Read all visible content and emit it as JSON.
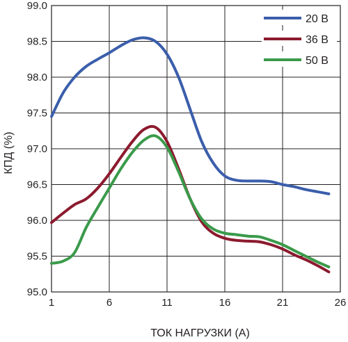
{
  "chart_data": {
    "type": "line",
    "title": "",
    "xlabel": "ТОК НАГРУЗКИ (А)",
    "ylabel": "КПД (%)",
    "xlim": [
      1,
      26
    ],
    "ylim": [
      95.0,
      99.0
    ],
    "xticks": [
      1,
      6,
      11,
      16,
      21,
      26
    ],
    "xtick_labels": [
      "1",
      "6",
      "11",
      "16",
      "21",
      "26"
    ],
    "yticks": [
      95.0,
      95.5,
      96.0,
      96.5,
      97.0,
      97.5,
      98.0,
      98.5,
      99.0
    ],
    "ytick_labels": [
      "95.0",
      "95.5",
      "96.0",
      "96.5",
      "97.0",
      "97.5",
      "98.0",
      "98.5",
      "99.0"
    ],
    "grid": true,
    "legend_position": "top-right",
    "series": [
      {
        "name": "20 В",
        "color": "#3b5eab",
        "x": [
          1,
          2,
          3,
          4,
          5,
          6,
          7,
          8,
          9,
          10,
          11,
          12,
          13,
          14,
          15,
          16,
          17,
          18,
          19,
          20,
          21,
          22,
          23,
          24,
          25
        ],
        "y": [
          97.45,
          97.78,
          98.0,
          98.15,
          98.25,
          98.34,
          98.44,
          98.52,
          98.55,
          98.5,
          98.32,
          98.0,
          97.55,
          97.1,
          96.8,
          96.62,
          96.56,
          96.55,
          96.55,
          96.54,
          96.5,
          96.47,
          96.43,
          96.4,
          96.37
        ]
      },
      {
        "name": "36 В",
        "color": "#8c1a2e",
        "x": [
          1,
          2,
          3,
          4,
          5,
          6,
          7,
          8,
          9,
          10,
          11,
          12,
          13,
          14,
          15,
          16,
          17,
          18,
          19,
          20,
          21,
          22,
          23,
          24,
          25
        ],
        "y": [
          95.97,
          96.1,
          96.22,
          96.3,
          96.45,
          96.65,
          96.88,
          97.1,
          97.27,
          97.3,
          97.1,
          96.72,
          96.3,
          95.98,
          95.82,
          95.75,
          95.72,
          95.71,
          95.7,
          95.66,
          95.6,
          95.52,
          95.45,
          95.37,
          95.28
        ]
      },
      {
        "name": "50 В",
        "color": "#3a9a4a",
        "x": [
          1,
          2,
          3,
          4,
          5,
          6,
          7,
          8,
          9,
          10,
          11,
          12,
          13,
          14,
          15,
          16,
          17,
          18,
          19,
          20,
          21,
          22,
          23,
          24,
          25
        ],
        "y": [
          95.4,
          95.43,
          95.55,
          95.9,
          96.18,
          96.45,
          96.72,
          96.95,
          97.12,
          97.18,
          97.02,
          96.68,
          96.3,
          96.02,
          95.88,
          95.82,
          95.8,
          95.78,
          95.77,
          95.72,
          95.66,
          95.58,
          95.5,
          95.42,
          95.35
        ]
      }
    ]
  }
}
